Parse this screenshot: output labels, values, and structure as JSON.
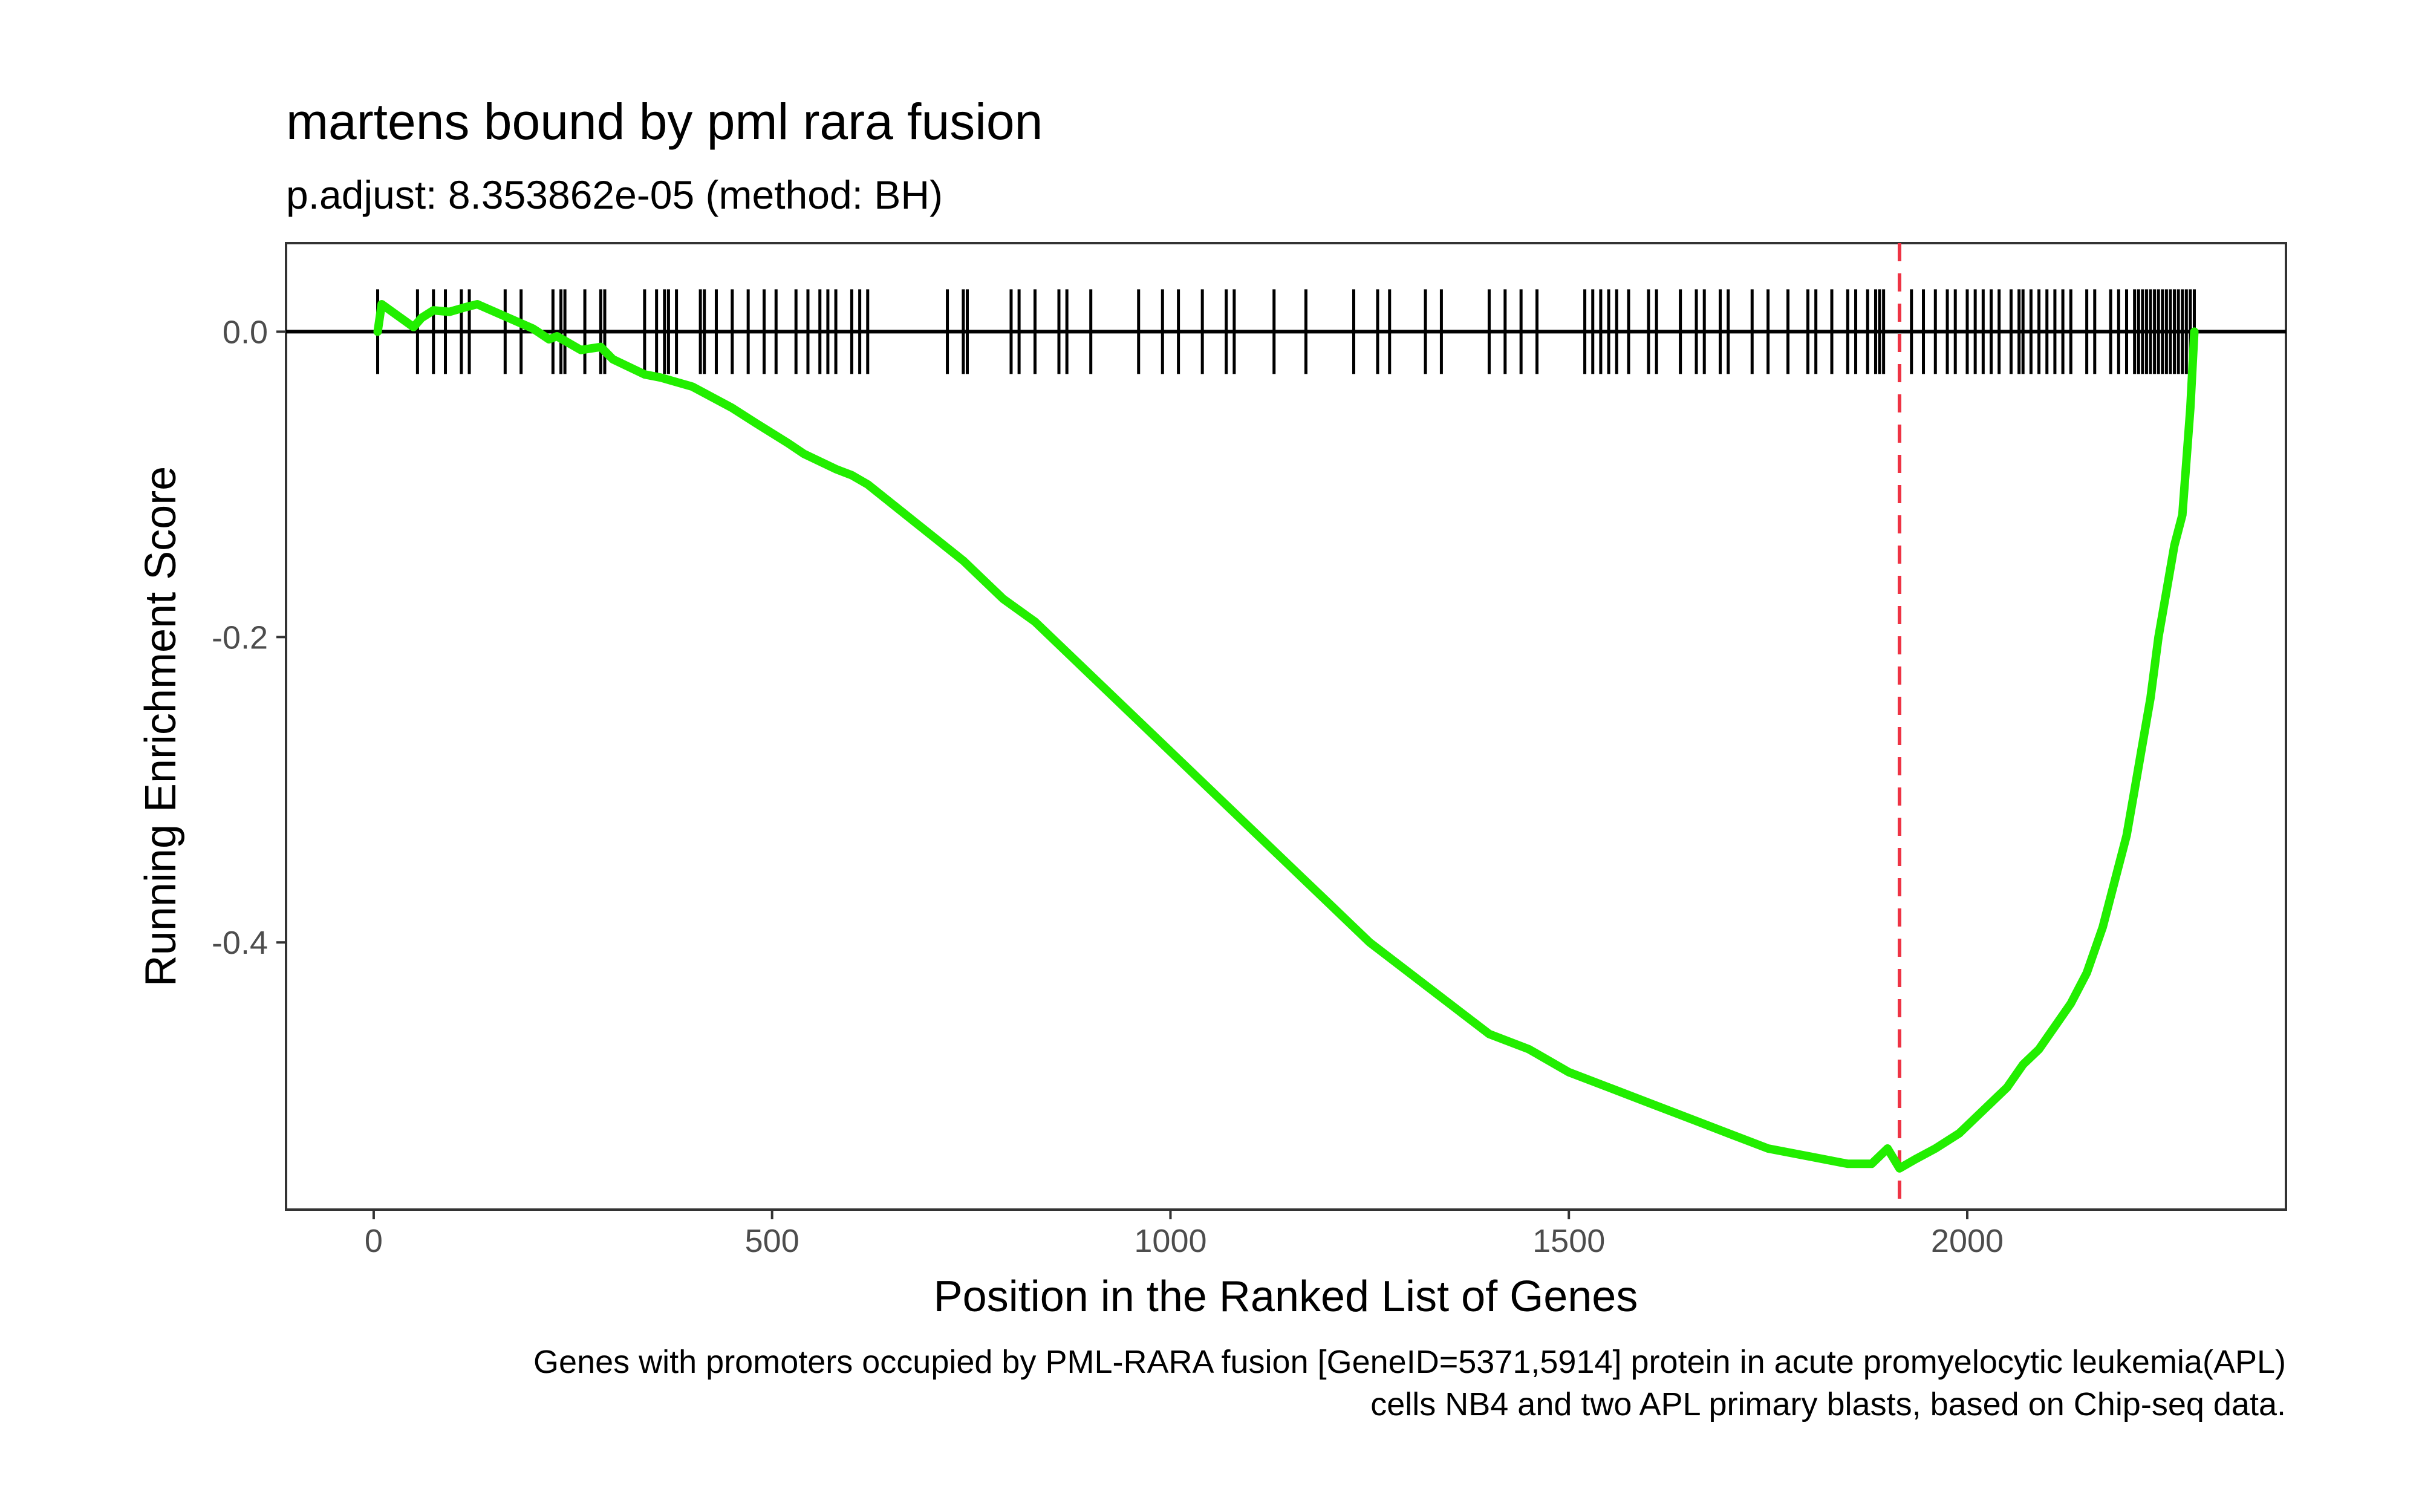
{
  "chart_data": {
    "type": "line",
    "title": "martens bound by pml rara fusion",
    "subtitle": "p.adjust: 8.353862e-05 (method: BH)",
    "xlabel": "Position in the Ranked List of Genes",
    "ylabel": "Running Enrichment Score",
    "caption_lines": [
      "Genes with promoters occupied by PML-RARA fusion [GeneID=5371,5914] protein in acute promyelocytic leukemia(APL)",
      "cells NB4 and two APL primary blasts, based on Chip-seq data."
    ],
    "xlim": [
      -110,
      2400
    ],
    "ylim": [
      -0.575,
      0.058
    ],
    "x_ticks": [
      0,
      500,
      1000,
      1500,
      2000
    ],
    "x_tick_labels": [
      "0",
      "500",
      "1000",
      "1500",
      "2000"
    ],
    "y_ticks": [
      0.0,
      -0.2,
      -0.4
    ],
    "y_tick_labels": [
      "0.0",
      "-0.2",
      "-0.4"
    ],
    "grid": false,
    "max_deviation_position": 1915,
    "colors": {
      "line": "#22ee00",
      "hits": "#000000",
      "baseline": "#000000",
      "max_marker": "#ee3344",
      "axis_text": "#4d4d4d"
    },
    "series": [
      {
        "x": [
          5,
          10,
          50,
          60,
          75,
          95,
          115,
          130,
          200,
          220,
          230,
          260,
          285,
          300,
          340,
          360,
          400,
          450,
          480,
          520,
          540,
          580,
          600,
          620,
          680,
          740,
          790,
          830,
          880,
          920,
          960,
          1000,
          1050,
          1100,
          1150,
          1200,
          1250,
          1300,
          1350,
          1400,
          1450,
          1500,
          1550,
          1600,
          1650,
          1700,
          1750,
          1800,
          1850,
          1880,
          1900,
          1915,
          1935,
          1960,
          1990,
          2010,
          2030,
          2050,
          2070,
          2090,
          2110,
          2130,
          2150,
          2170,
          2190,
          2200,
          2210,
          2220,
          2230,
          2240,
          2250,
          2260,
          2270,
          2280,
          2285
        ],
        "y": [
          0.0,
          0.018,
          0.003,
          0.009,
          0.014,
          0.013,
          0.016,
          0.018,
          0.002,
          -0.005,
          -0.003,
          -0.012,
          -0.01,
          -0.018,
          -0.028,
          -0.03,
          -0.036,
          -0.05,
          -0.06,
          -0.073,
          -0.08,
          -0.09,
          -0.094,
          -0.1,
          -0.125,
          -0.15,
          -0.175,
          -0.19,
          -0.215,
          -0.235,
          -0.255,
          -0.275,
          -0.3,
          -0.325,
          -0.35,
          -0.375,
          -0.4,
          -0.42,
          -0.44,
          -0.46,
          -0.47,
          -0.485,
          -0.495,
          -0.505,
          -0.515,
          -0.525,
          -0.535,
          -0.54,
          -0.545,
          -0.545,
          -0.535,
          -0.548,
          -0.542,
          -0.535,
          -0.525,
          -0.515,
          -0.505,
          -0.495,
          -0.48,
          -0.47,
          -0.455,
          -0.44,
          -0.42,
          -0.39,
          -0.35,
          -0.33,
          -0.3,
          -0.27,
          -0.24,
          -0.2,
          -0.17,
          -0.14,
          -0.12,
          -0.05,
          0.0
        ]
      }
    ],
    "hits": [
      5,
      55,
      75,
      90,
      110,
      120,
      165,
      185,
      225,
      235,
      240,
      265,
      285,
      290,
      340,
      355,
      365,
      370,
      380,
      410,
      415,
      430,
      450,
      470,
      490,
      505,
      530,
      545,
      560,
      570,
      580,
      600,
      610,
      620,
      720,
      740,
      745,
      800,
      810,
      830,
      860,
      870,
      900,
      960,
      990,
      1010,
      1040,
      1070,
      1080,
      1130,
      1170,
      1230,
      1260,
      1275,
      1320,
      1340,
      1400,
      1420,
      1440,
      1460,
      1520,
      1530,
      1540,
      1550,
      1560,
      1575,
      1600,
      1610,
      1640,
      1660,
      1670,
      1690,
      1700,
      1730,
      1750,
      1775,
      1800,
      1810,
      1830,
      1850,
      1860,
      1875,
      1885,
      1890,
      1895,
      1930,
      1945,
      1960,
      1975,
      1985,
      2000,
      2010,
      2020,
      2030,
      2040,
      2055,
      2065,
      2070,
      2080,
      2090,
      2100,
      2110,
      2120,
      2130,
      2150,
      2160,
      2180,
      2190,
      2200,
      2210,
      2215,
      2220,
      2225,
      2230,
      2235,
      2240,
      2245,
      2250,
      2255,
      2260,
      2265,
      2270,
      2275,
      2280,
      2285
    ]
  }
}
